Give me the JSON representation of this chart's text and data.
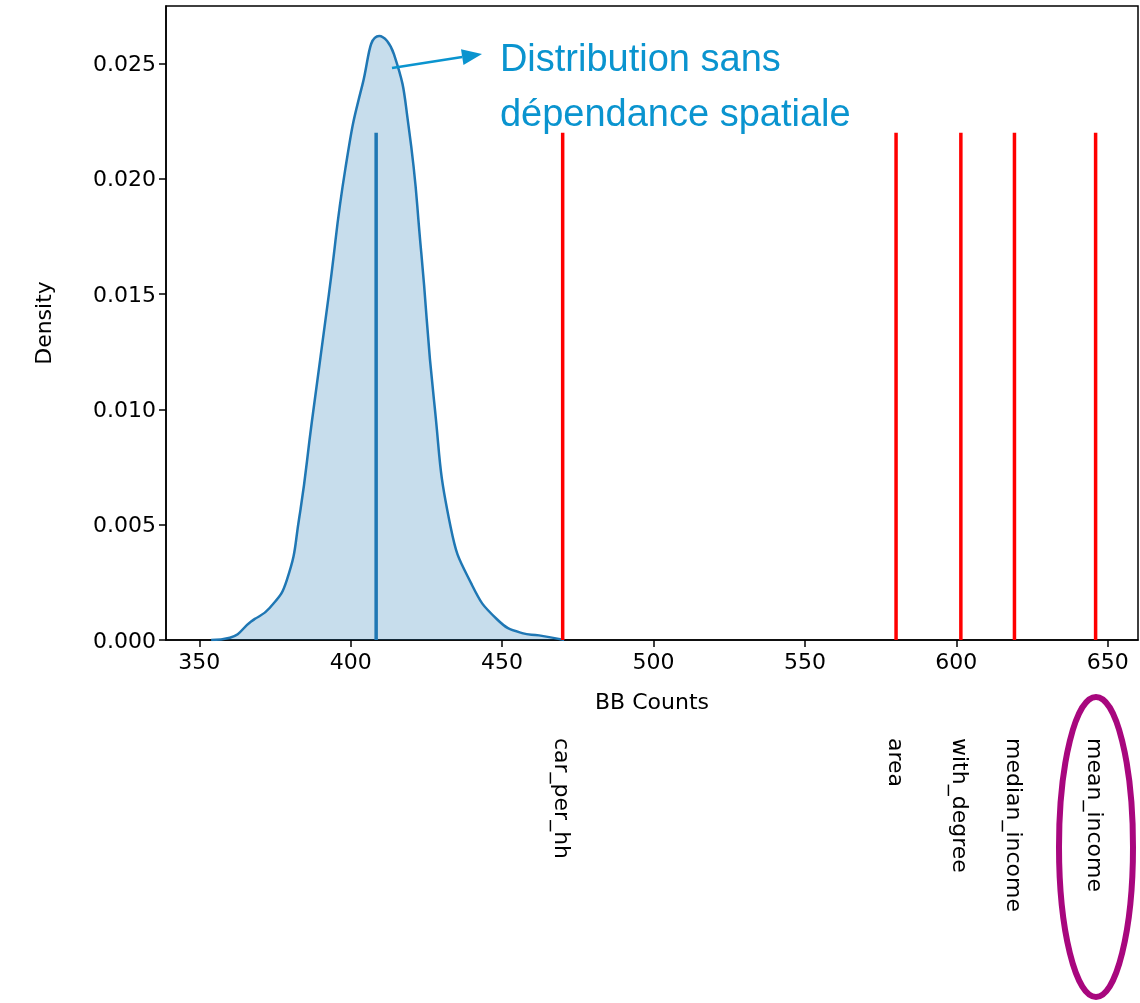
{
  "chart_data": {
    "type": "area",
    "xlabel": "BB Counts",
    "ylabel": "Density",
    "xlim": [
      339,
      660
    ],
    "ylim": [
      0,
      0.0275
    ],
    "xticks": [
      350,
      400,
      450,
      500,
      550,
      600,
      650
    ],
    "yticks": [
      {
        "value": 0,
        "label": "0.000"
      },
      {
        "value": 0.005,
        "label": "0.005"
      },
      {
        "value": 0.01,
        "label": "0.010"
      },
      {
        "value": 0.015,
        "label": "0.015"
      },
      {
        "value": 0.02,
        "label": "0.020"
      },
      {
        "value": 0.025,
        "label": "0.025"
      }
    ],
    "grid": false,
    "legend": false,
    "annotations": [
      {
        "text": "Distribution sans\ndépendance spatiale",
        "x": 413.6,
        "y": 0.0248
      }
    ],
    "series": [
      {
        "color": "#1f77b4",
        "x": [
          353.9,
          360.1,
          367.1,
          373.3,
          378.9,
          383,
          387.2,
          392.8,
          398.3,
          403.9,
          409.4,
          414.3,
          419.1,
          423.3,
          427.5,
          433,
          440,
          448.3,
          456.6,
          462.2,
          470.5
        ],
        "values": [
          0,
          0.0001,
          0.0008,
          0.0014,
          0.0026,
          0.0053,
          0.0095,
          0.015,
          0.0205,
          0.0241,
          0.0262,
          0.0254,
          0.0223,
          0.0168,
          0.0104,
          0.0049,
          0.0024,
          0.0009,
          0.0003,
          0.0002,
          0
        ]
      },
      {
        "type": "line",
        "color": "#1f77b4",
        "x": [
          408.4,
          408.4
        ],
        "values": [
          0,
          0.022
        ]
      },
      {
        "type": "line",
        "name": "car_per_hh",
        "color": "#ff0000",
        "x": [
          470,
          470
        ],
        "values": [
          0,
          0.022
        ]
      },
      {
        "type": "line",
        "name": "area",
        "color": "#ff0000",
        "x": [
          580.1,
          580.1
        ],
        "values": [
          0,
          0.022
        ]
      },
      {
        "type": "line",
        "name": "with_degree",
        "color": "#ff0000",
        "x": [
          601.5,
          601.5
        ],
        "values": [
          0,
          0.022
        ]
      },
      {
        "type": "line",
        "name": "median_income",
        "color": "#ff0000",
        "x": [
          619.2,
          619.2
        ],
        "values": [
          0,
          0.022
        ]
      },
      {
        "type": "line",
        "name": "mean_income",
        "color": "#ff0000",
        "x": [
          646,
          646
        ],
        "values": [
          0,
          0.022
        ]
      }
    ]
  }
}
